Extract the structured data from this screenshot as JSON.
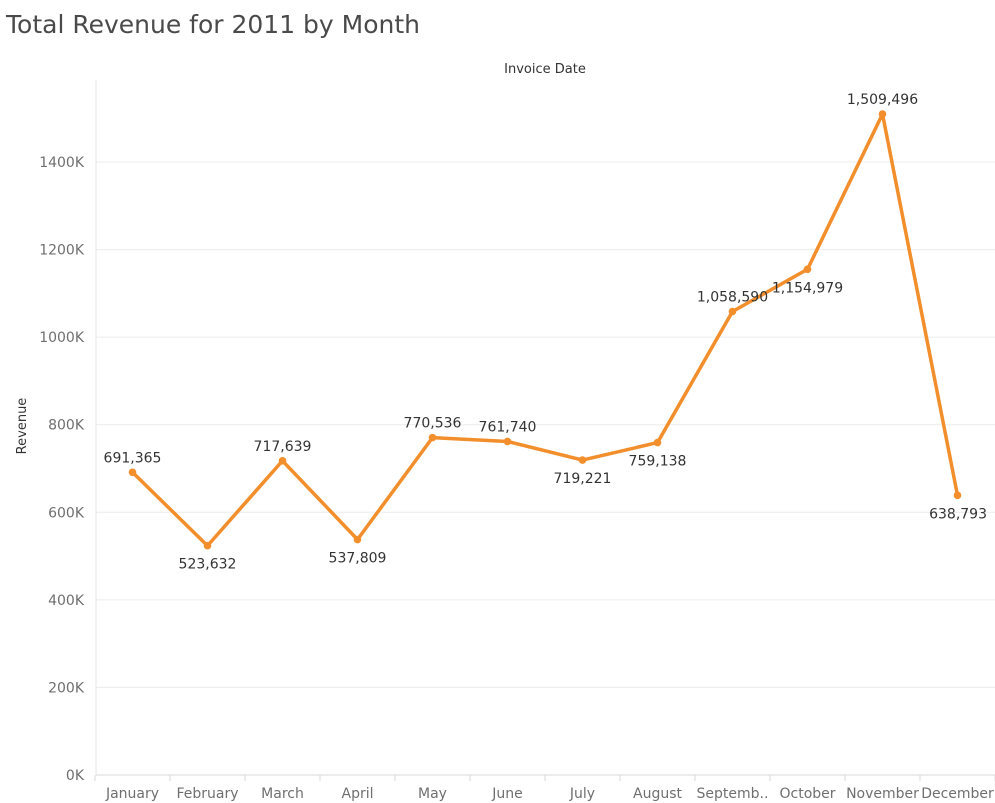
{
  "chart_data": {
    "type": "line",
    "title": "Total Revenue for 2011 by Month",
    "xlabel": "Invoice Date",
    "ylabel": "Revenue",
    "categories": [
      "January",
      "February",
      "March",
      "April",
      "May",
      "June",
      "July",
      "August",
      "September",
      "October",
      "November",
      "December"
    ],
    "category_display": [
      "January",
      "February",
      "March",
      "April",
      "May",
      "June",
      "July",
      "August",
      "Septemb..",
      "October",
      "November",
      "December"
    ],
    "series": [
      {
        "values": [
          691365,
          523632,
          717639,
          537809,
          770536,
          761740,
          719221,
          759138,
          1058590,
          1154979,
          1509496,
          638793
        ],
        "labels": [
          "691,365",
          "523,632",
          "717,639",
          "537,809",
          "770,536",
          "761,740",
          "719,221",
          "759,138",
          "1,058,590",
          "1,154,979",
          "1,509,496",
          "638,793"
        ],
        "label_positions": [
          "above",
          "below",
          "above",
          "below",
          "above",
          "above",
          "below",
          "below",
          "above",
          "below",
          "above",
          "below"
        ]
      }
    ],
    "ylim": [
      0,
      1550000
    ],
    "yticks": [
      0,
      200000,
      400000,
      600000,
      800000,
      1000000,
      1200000,
      1400000
    ],
    "ytick_labels": [
      "0K",
      "200K",
      "400K",
      "600K",
      "800K",
      "1000K",
      "1200K",
      "1400K"
    ],
    "grid": true,
    "line_color": "#F28E2B",
    "marker_color": "#F28E2B"
  }
}
